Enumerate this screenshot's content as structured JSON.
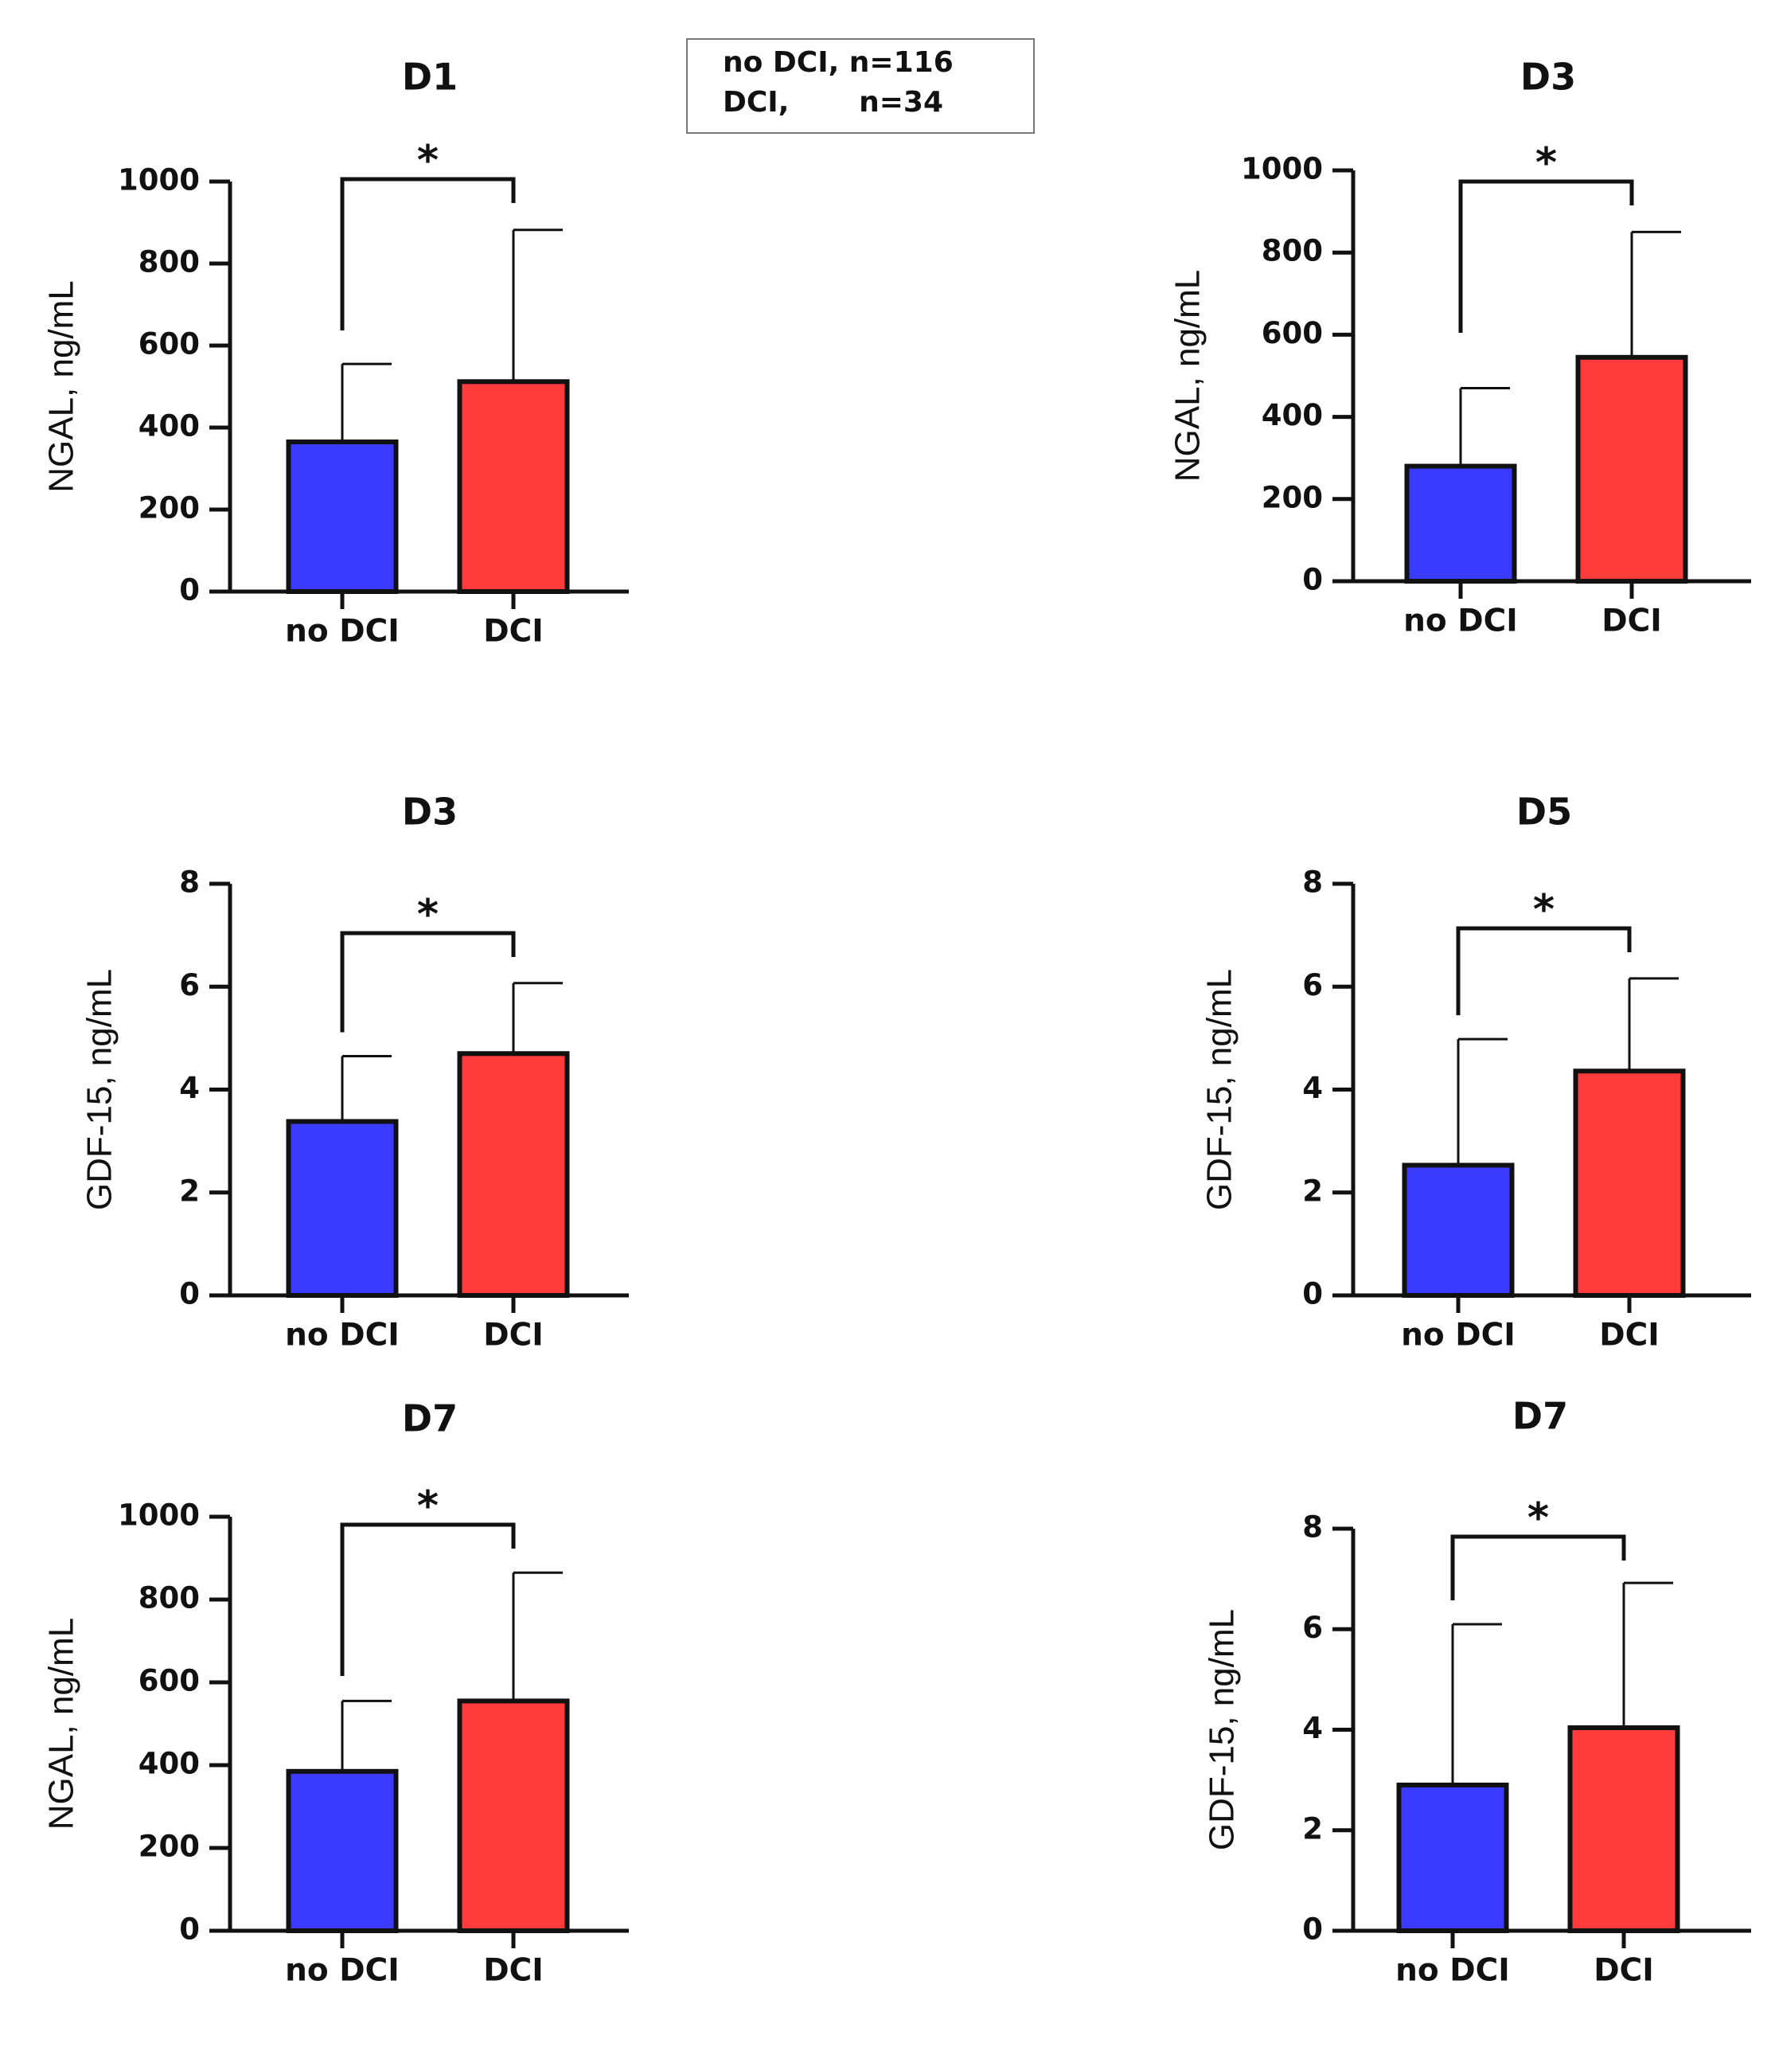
{
  "legend": {
    "line1": "no DCI, n=116",
    "line2": "DCI,       n=34"
  },
  "colors": {
    "no_dci": "#3b3bff",
    "dci": "#ff3b3b",
    "axis": "#111111"
  },
  "chart_data": [
    {
      "type": "bar",
      "title": "D1",
      "ylabel": "NGAL, ng/mL",
      "categories": [
        "no DCI",
        "DCI"
      ],
      "values": [
        365,
        512
      ],
      "error": [
        190,
        370
      ],
      "ylim": [
        0,
        1000
      ],
      "yticks": [
        0,
        200,
        400,
        600,
        800,
        1000
      ],
      "yticklabels": [
        "0",
        "200",
        "400",
        "600",
        "800",
        "1000"
      ],
      "significance": "*"
    },
    {
      "type": "bar",
      "title": "D3",
      "ylabel": "NGAL, ng/mL",
      "categories": [
        "no DCI",
        "DCI"
      ],
      "values": [
        280,
        545
      ],
      "error": [
        190,
        305
      ],
      "ylim": [
        0,
        1000
      ],
      "yticks": [
        0,
        200,
        400,
        600,
        800,
        1000
      ],
      "yticklabels": [
        "0",
        "200",
        "400",
        "600",
        "800",
        "1000"
      ],
      "significance": "*"
    },
    {
      "type": "bar",
      "title": "D3",
      "ylabel": "GDF-15, ng/mL",
      "categories": [
        "no DCI",
        "DCI"
      ],
      "values": [
        3.38,
        4.7
      ],
      "error": [
        1.27,
        1.37
      ],
      "ylim": [
        0,
        8
      ],
      "yticks": [
        0,
        2,
        4,
        6,
        8
      ],
      "yticklabels": [
        "0",
        "2",
        "4",
        "6",
        "8"
      ],
      "significance": "*"
    },
    {
      "type": "bar",
      "title": "D5",
      "ylabel": "GDF-15, ng/mL",
      "categories": [
        "no DCI",
        "DCI"
      ],
      "values": [
        2.53,
        4.36
      ],
      "error": [
        2.45,
        1.8
      ],
      "ylim": [
        0,
        8
      ],
      "yticks": [
        0,
        2,
        4,
        6,
        8
      ],
      "yticklabels": [
        "0",
        "2",
        "4",
        "6",
        "8"
      ],
      "significance": "*"
    },
    {
      "type": "bar",
      "title": "D7",
      "ylabel": "NGAL, ng/mL",
      "categories": [
        "no DCI",
        "DCI"
      ],
      "values": [
        385,
        555
      ],
      "error": [
        170,
        310
      ],
      "ylim": [
        0,
        1000
      ],
      "yticks": [
        0,
        200,
        400,
        600,
        800,
        1000
      ],
      "yticklabels": [
        "0",
        "200",
        "400",
        "600",
        "800",
        "1000"
      ],
      "significance": "*"
    },
    {
      "type": "bar",
      "title": "D7",
      "ylabel": "GDF-15, ng/mL",
      "categories": [
        "no DCI",
        "DCI"
      ],
      "values": [
        2.9,
        4.04
      ],
      "error": [
        3.2,
        2.88
      ],
      "ylim": [
        0,
        8
      ],
      "yticks": [
        0,
        2,
        4,
        6,
        8
      ],
      "yticklabels": [
        "0",
        "2",
        "4",
        "6",
        "8"
      ],
      "significance": "*"
    }
  ]
}
